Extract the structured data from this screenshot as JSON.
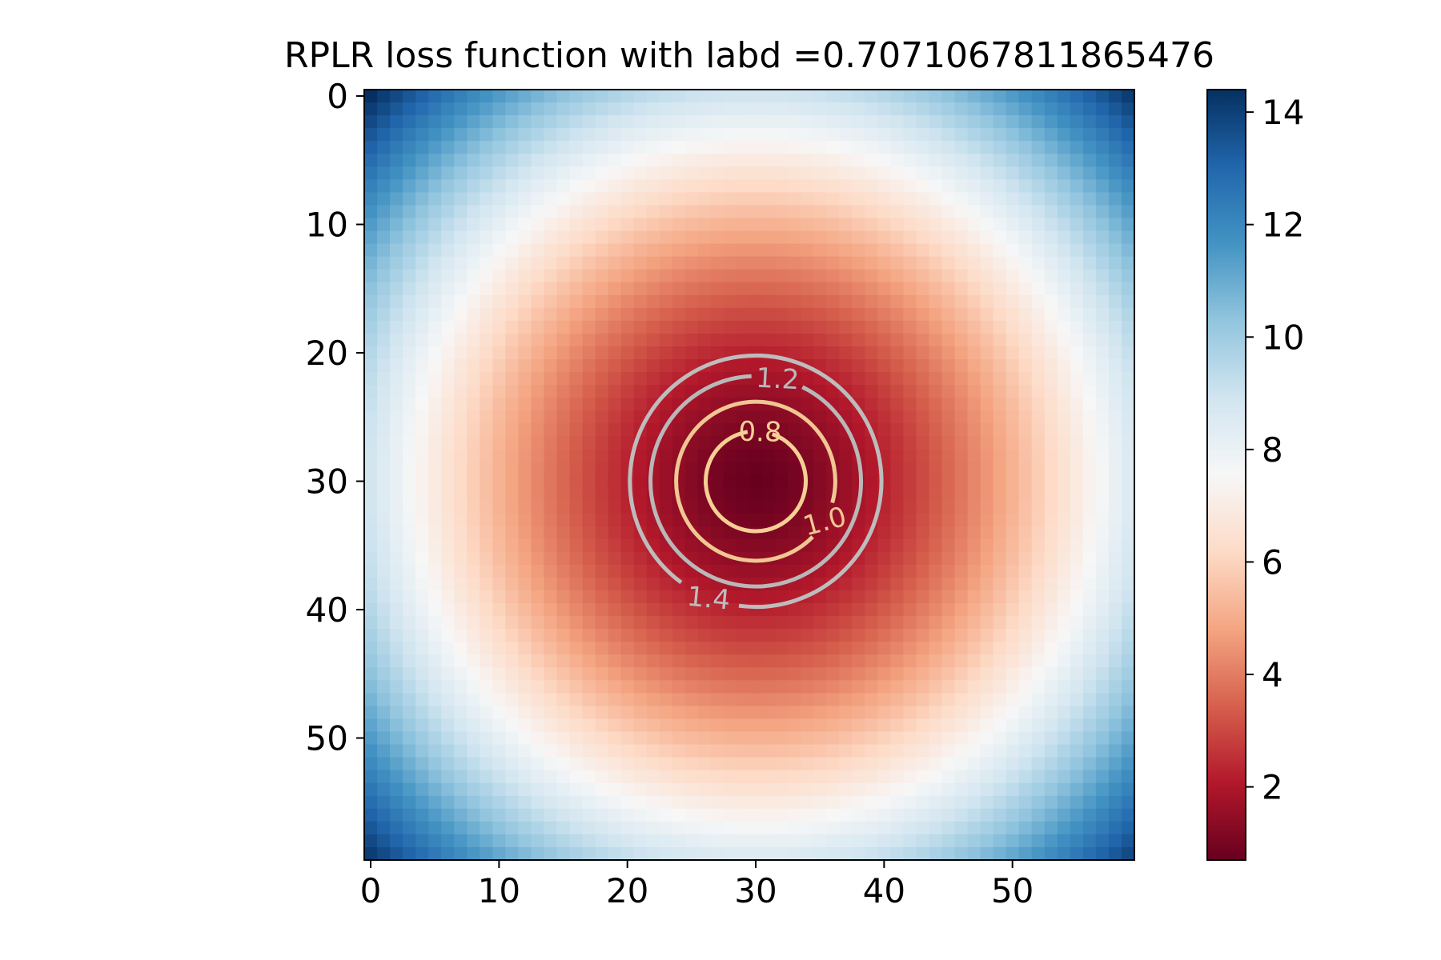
{
  "chart_data": {
    "type": "heatmap",
    "title": "RPLR loss function with labd =0.7071067811865476",
    "grid_size": [
      60,
      60
    ],
    "center": [
      30,
      30
    ],
    "value_range": [
      0.7,
      14.4
    ],
    "colormap": "RdBu",
    "colormap_stops": [
      "#67001f",
      "#b2182b",
      "#d6604d",
      "#f4a582",
      "#fddbc7",
      "#f7f7f7",
      "#d1e5f0",
      "#92c5de",
      "#4393c3",
      "#2166ac",
      "#053061"
    ],
    "x_ticks": [
      0,
      10,
      20,
      30,
      40,
      50
    ],
    "y_ticks": [
      0,
      10,
      20,
      30,
      40,
      50
    ],
    "x_range": [
      -0.5,
      59.5
    ],
    "y_range": [
      -0.5,
      59.5
    ],
    "y_inverted": true,
    "grid": false,
    "colorbar": {
      "ticks": [
        2,
        4,
        6,
        8,
        10,
        12,
        14
      ],
      "range": [
        0.7,
        14.4
      ],
      "placement": "right"
    },
    "contours": [
      {
        "level": 0.8,
        "label": "0.8",
        "radius": 3.9,
        "color": "#f5cf94"
      },
      {
        "level": 1.0,
        "label": "1.0",
        "radius": 6.2,
        "color": "#f0c792"
      },
      {
        "level": 1.2,
        "label": "1.2",
        "radius": 8.2,
        "color": "#b8b8b8"
      },
      {
        "level": 1.4,
        "label": "1.4",
        "radius": 9.8,
        "color": "#bdbdbd"
      }
    ]
  }
}
